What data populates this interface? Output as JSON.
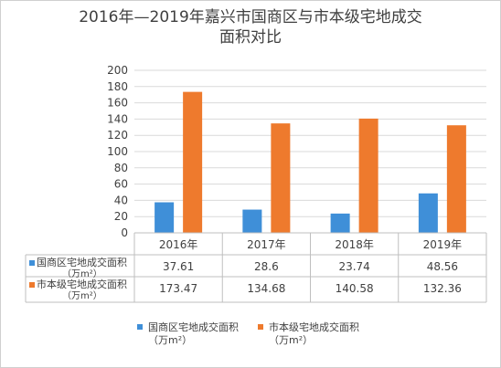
{
  "title_line1": "2016年—2019年嘉兴市国商区与市本级宅地成交",
  "title_line2": "面积对比",
  "colors": {
    "series1": "#3f8fd8",
    "series2": "#ee7a2d",
    "grid": "#d9d9d9",
    "text": "#404040"
  },
  "chart_data": {
    "type": "bar",
    "title": "2016年—2019年嘉兴市国商区与市本级宅地成交面积对比",
    "categories": [
      "2016年",
      "2017年",
      "2018年",
      "2019年"
    ],
    "y_ticks": [
      "0",
      "20",
      "40",
      "60",
      "80",
      "100",
      "120",
      "140",
      "160",
      "180",
      "200"
    ],
    "ylim": [
      0,
      200
    ],
    "grid": true,
    "legend_position": "bottom",
    "series": [
      {
        "name": "国商区宅地成交面积",
        "unit": "（万m²）",
        "values": [
          37.61,
          28.6,
          23.74,
          48.56
        ],
        "labels": [
          "37.61",
          "28.6",
          "23.74",
          "48.56"
        ]
      },
      {
        "name": "市本级宅地成交面积",
        "unit": "（万m²）",
        "values": [
          173.47,
          134.68,
          140.58,
          132.36
        ],
        "labels": [
          "173.47",
          "134.68",
          "140.58",
          "132.36"
        ]
      }
    ]
  }
}
